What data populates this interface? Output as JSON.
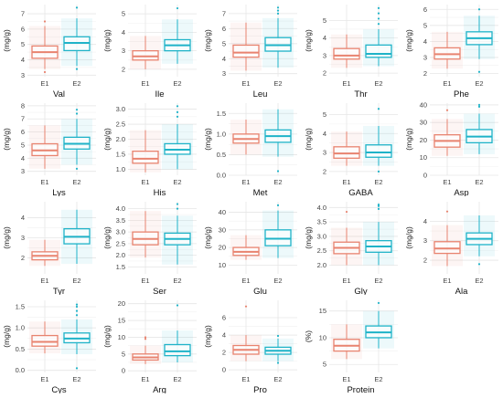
{
  "colors": {
    "e1": "#e8836f",
    "e2": "#1fb3c8",
    "grid": "#e6e6e6",
    "text": "#444444"
  },
  "chart_data": [
    {
      "type": "box",
      "title": "Val",
      "ylabel": "(mg/g)",
      "ylim": [
        2.9,
        7.6
      ],
      "yticks": [
        3,
        4,
        5,
        6,
        7
      ],
      "categories": [
        "E1",
        "E2"
      ],
      "boxes": [
        {
          "name": "E1",
          "whislo": 3.4,
          "q1": 4.1,
          "med": 4.5,
          "q3": 4.9,
          "whishi": 6.2,
          "fliers": [
            6.5,
            3.2
          ]
        },
        {
          "name": "E2",
          "whislo": 3.6,
          "q1": 4.6,
          "med": 5.1,
          "q3": 5.5,
          "whishi": 6.7,
          "fliers": [
            7.4,
            3.4
          ]
        }
      ]
    },
    {
      "type": "box",
      "title": "Ile",
      "ylabel": "(mg/g)",
      "ylim": [
        1.6,
        5.5
      ],
      "yticks": [
        2,
        3,
        4,
        5
      ],
      "categories": [
        "E1",
        "E2"
      ],
      "boxes": [
        {
          "name": "E1",
          "whislo": 2.0,
          "q1": 2.5,
          "med": 2.7,
          "q3": 3.0,
          "whishi": 3.8,
          "fliers": []
        },
        {
          "name": "E2",
          "whislo": 2.3,
          "q1": 3.0,
          "med": 3.3,
          "q3": 3.6,
          "whishi": 4.7,
          "fliers": [
            5.3
          ]
        }
      ]
    },
    {
      "type": "box",
      "title": "Leu",
      "ylabel": "(mg/g)",
      "ylim": [
        2.8,
        7.6
      ],
      "yticks": [
        3,
        4,
        5,
        6,
        7
      ],
      "categories": [
        "E1",
        "E2"
      ],
      "boxes": [
        {
          "name": "E1",
          "whislo": 3.2,
          "q1": 4.1,
          "med": 4.4,
          "q3": 4.9,
          "whishi": 6.4,
          "fliers": []
        },
        {
          "name": "E2",
          "whislo": 3.4,
          "q1": 4.5,
          "med": 4.9,
          "q3": 5.4,
          "whishi": 6.7,
          "fliers": [
            7.0,
            7.2,
            7.4
          ]
        }
      ]
    },
    {
      "type": "box",
      "title": "Thr",
      "ylabel": "(mg/g)",
      "ylim": [
        1.8,
        5.9
      ],
      "yticks": [
        2,
        3,
        4,
        5
      ],
      "categories": [
        "E1",
        "E2"
      ],
      "boxes": [
        {
          "name": "E1",
          "whislo": 2.3,
          "q1": 2.8,
          "med": 3.0,
          "q3": 3.4,
          "whishi": 4.2,
          "fliers": []
        },
        {
          "name": "E2",
          "whislo": 2.4,
          "q1": 2.9,
          "med": 3.1,
          "q3": 3.6,
          "whishi": 4.5,
          "fliers": [
            4.8,
            5.1,
            5.4,
            5.7
          ]
        }
      ]
    },
    {
      "type": "box",
      "title": "Phe",
      "ylabel": "(mg/g)",
      "ylim": [
        1.8,
        6.3
      ],
      "yticks": [
        2,
        3,
        4,
        5,
        6
      ],
      "categories": [
        "E1",
        "E2"
      ],
      "boxes": [
        {
          "name": "E1",
          "whislo": 2.3,
          "q1": 2.9,
          "med": 3.2,
          "q3": 3.6,
          "whishi": 4.6,
          "fliers": []
        },
        {
          "name": "E2",
          "whislo": 2.9,
          "q1": 3.8,
          "med": 4.2,
          "q3": 4.6,
          "whishi": 5.6,
          "fliers": [
            6.0,
            2.1
          ]
        }
      ]
    },
    {
      "type": "box",
      "title": "Lys",
      "ylabel": "(mg/g)",
      "ylim": [
        2.7,
        8.2
      ],
      "yticks": [
        3,
        4,
        5,
        6,
        7,
        8
      ],
      "categories": [
        "E1",
        "E2"
      ],
      "boxes": [
        {
          "name": "E1",
          "whislo": 3.2,
          "q1": 4.2,
          "med": 4.6,
          "q3": 5.1,
          "whishi": 6.5,
          "fliers": []
        },
        {
          "name": "E2",
          "whislo": 3.5,
          "q1": 4.7,
          "med": 5.1,
          "q3": 5.6,
          "whishi": 7.0,
          "fliers": [
            7.4,
            7.7,
            3.2
          ]
        }
      ]
    },
    {
      "type": "box",
      "title": "His",
      "ylabel": "(mg/g)",
      "ylim": [
        0.8,
        3.2
      ],
      "yticks": [
        1.0,
        1.5,
        2.0,
        2.5,
        3.0
      ],
      "categories": [
        "E1",
        "E2"
      ],
      "boxes": [
        {
          "name": "E1",
          "whislo": 0.9,
          "q1": 1.2,
          "med": 1.35,
          "q3": 1.6,
          "whishi": 2.3,
          "fliers": []
        },
        {
          "name": "E2",
          "whislo": 1.0,
          "q1": 1.5,
          "med": 1.65,
          "q3": 1.85,
          "whishi": 2.5,
          "fliers": [
            2.75,
            2.9,
            3.1
          ]
        }
      ]
    },
    {
      "type": "box",
      "title": "Met",
      "ylabel": "(mg/g)",
      "ylim": [
        0.0,
        1.75
      ],
      "yticks": [
        0.0,
        0.5,
        1.0,
        1.5
      ],
      "categories": [
        "E1",
        "E2"
      ],
      "boxes": [
        {
          "name": "E1",
          "whislo": 0.5,
          "q1": 0.78,
          "med": 0.88,
          "q3": 1.0,
          "whishi": 1.35,
          "fliers": []
        },
        {
          "name": "E2",
          "whislo": 0.45,
          "q1": 0.8,
          "med": 0.95,
          "q3": 1.1,
          "whishi": 1.6,
          "fliers": [
            0.1
          ]
        }
      ]
    },
    {
      "type": "box",
      "title": "GABA",
      "ylabel": "(mg/g)",
      "ylim": [
        1.8,
        5.6
      ],
      "yticks": [
        2,
        3,
        4,
        5
      ],
      "categories": [
        "E1",
        "E2"
      ],
      "boxes": [
        {
          "name": "E1",
          "whislo": 2.3,
          "q1": 2.7,
          "med": 2.95,
          "q3": 3.3,
          "whishi": 4.1,
          "fliers": []
        },
        {
          "name": "E2",
          "whislo": 2.3,
          "q1": 2.75,
          "med": 3.0,
          "q3": 3.4,
          "whishi": 4.4,
          "fliers": [
            5.3,
            2.0
          ]
        }
      ]
    },
    {
      "type": "box",
      "title": "Asp",
      "ylabel": "(mg/g)",
      "ylim": [
        0,
        41
      ],
      "yticks": [
        0,
        10,
        20,
        30,
        40
      ],
      "categories": [
        "E1",
        "E2"
      ],
      "boxes": [
        {
          "name": "E1",
          "whislo": 11,
          "q1": 16,
          "med": 19.5,
          "q3": 23,
          "whishi": 32,
          "fliers": [
            37
          ]
        },
        {
          "name": "E2",
          "whislo": 12,
          "q1": 18.5,
          "med": 22,
          "q3": 26,
          "whishi": 35,
          "fliers": [
            39,
            40
          ]
        }
      ]
    },
    {
      "type": "box",
      "title": "Tyr",
      "ylabel": "(mg/g)",
      "ylim": [
        1.2,
        4.8
      ],
      "yticks": [
        2,
        3,
        4
      ],
      "categories": [
        "E1",
        "E2"
      ],
      "boxes": [
        {
          "name": "E1",
          "whislo": 1.6,
          "q1": 1.9,
          "med": 2.1,
          "q3": 2.3,
          "whishi": 2.9,
          "fliers": []
        },
        {
          "name": "E2",
          "whislo": 1.7,
          "q1": 2.7,
          "med": 3.05,
          "q3": 3.45,
          "whishi": 4.4,
          "fliers": []
        }
      ]
    },
    {
      "type": "box",
      "title": "Ser",
      "ylabel": "(mg/g)",
      "ylim": [
        1.2,
        4.3
      ],
      "yticks": [
        1.5,
        2.0,
        2.5,
        3.0,
        3.5,
        4.0
      ],
      "categories": [
        "E1",
        "E2"
      ],
      "boxes": [
        {
          "name": "E1",
          "whislo": 1.9,
          "q1": 2.45,
          "med": 2.7,
          "q3": 3.0,
          "whishi": 3.9,
          "fliers": []
        },
        {
          "name": "E2",
          "whislo": 1.6,
          "q1": 2.45,
          "med": 2.7,
          "q3": 2.95,
          "whishi": 3.7,
          "fliers": [
            4.0,
            4.2
          ]
        }
      ]
    },
    {
      "type": "box",
      "title": "Glu",
      "ylabel": "(mg/g)",
      "ylim": [
        5,
        46
      ],
      "yticks": [
        10,
        20,
        30,
        40
      ],
      "categories": [
        "E1",
        "E2"
      ],
      "boxes": [
        {
          "name": "E1",
          "whislo": 13,
          "q1": 15.5,
          "med": 17.5,
          "q3": 20,
          "whishi": 27,
          "fliers": []
        },
        {
          "name": "E2",
          "whislo": 14,
          "q1": 21,
          "med": 25,
          "q3": 30,
          "whishi": 41,
          "fliers": [
            44
          ]
        }
      ]
    },
    {
      "type": "box",
      "title": "Gly",
      "ylabel": "(mg/g)",
      "ylim": [
        1.7,
        4.2
      ],
      "yticks": [
        2.0,
        2.5,
        3.0,
        3.5,
        4.0
      ],
      "categories": [
        "E1",
        "E2"
      ],
      "boxes": [
        {
          "name": "E1",
          "whislo": 2.0,
          "q1": 2.4,
          "med": 2.6,
          "q3": 2.8,
          "whishi": 3.3,
          "fliers": [
            3.85
          ]
        },
        {
          "name": "E2",
          "whislo": 2.0,
          "q1": 2.45,
          "med": 2.65,
          "q3": 2.85,
          "whishi": 3.5,
          "fliers": [
            3.95,
            4.05,
            4.1
          ]
        }
      ]
    },
    {
      "type": "box",
      "title": "Ala",
      "ylabel": "(mg/g)",
      "ylim": [
        1.3,
        5.0
      ],
      "yticks": [
        2,
        3,
        4
      ],
      "categories": [
        "E1",
        "E2"
      ],
      "boxes": [
        {
          "name": "E1",
          "whislo": 1.7,
          "q1": 2.35,
          "med": 2.6,
          "q3": 2.95,
          "whishi": 3.8,
          "fliers": [
            4.5
          ]
        },
        {
          "name": "E2",
          "whislo": 2.2,
          "q1": 2.8,
          "med": 3.1,
          "q3": 3.4,
          "whishi": 4.3,
          "fliers": [
            1.8
          ]
        }
      ]
    },
    {
      "type": "box",
      "title": "Cys",
      "ylabel": "(mg/g)",
      "ylim": [
        -0.05,
        1.65
      ],
      "yticks": [
        0.0,
        0.5,
        1.0,
        1.5
      ],
      "categories": [
        "E1",
        "E2"
      ],
      "boxes": [
        {
          "name": "E1",
          "whislo": 0.4,
          "q1": 0.57,
          "med": 0.67,
          "q3": 0.82,
          "whishi": 1.15,
          "fliers": []
        },
        {
          "name": "E2",
          "whislo": 0.38,
          "q1": 0.65,
          "med": 0.75,
          "q3": 0.88,
          "whishi": 1.2,
          "fliers": [
            1.3,
            1.4,
            1.5,
            1.55,
            0.05
          ]
        }
      ]
    },
    {
      "type": "box",
      "title": "Arg",
      "ylabel": "(mg/g)",
      "ylim": [
        -0.5,
        21
      ],
      "yticks": [
        0,
        5,
        10,
        15,
        20
      ],
      "categories": [
        "E1",
        "E2"
      ],
      "boxes": [
        {
          "name": "E1",
          "whislo": 2.0,
          "q1": 3.2,
          "med": 4.0,
          "q3": 5.0,
          "whishi": 7.5,
          "fliers": [
            9.5,
            10
          ]
        },
        {
          "name": "E2",
          "whislo": 2.5,
          "q1": 4.5,
          "med": 5.8,
          "q3": 7.8,
          "whishi": 12,
          "fliers": [
            19.5
          ]
        }
      ]
    },
    {
      "type": "box",
      "title": "Pro",
      "ylabel": "(mg/g)",
      "ylim": [
        -0.3,
        8.0
      ],
      "yticks": [
        0,
        2,
        4,
        6
      ],
      "categories": [
        "E1",
        "E2"
      ],
      "boxes": [
        {
          "name": "E1",
          "whislo": 1.0,
          "q1": 1.8,
          "med": 2.3,
          "q3": 2.8,
          "whishi": 4.0,
          "fliers": [
            7.3
          ]
        },
        {
          "name": "E2",
          "whislo": 1.0,
          "q1": 1.8,
          "med": 2.2,
          "q3": 2.6,
          "whishi": 3.6,
          "fliers": [
            3.9,
            0.8
          ]
        }
      ]
    },
    {
      "type": "box",
      "title": "Protein",
      "ylabel": "(%)",
      "ylim": [
        3.5,
        17
      ],
      "yticks": [
        5,
        10,
        15
      ],
      "categories": [
        "E1",
        "E2"
      ],
      "boxes": [
        {
          "name": "E1",
          "whislo": 6,
          "q1": 7.5,
          "med": 8.5,
          "q3": 9.7,
          "whishi": 12.5,
          "fliers": []
        },
        {
          "name": "E2",
          "whislo": 8,
          "q1": 10,
          "med": 11,
          "q3": 12.2,
          "whishi": 15,
          "fliers": [
            16.5
          ]
        }
      ]
    }
  ]
}
